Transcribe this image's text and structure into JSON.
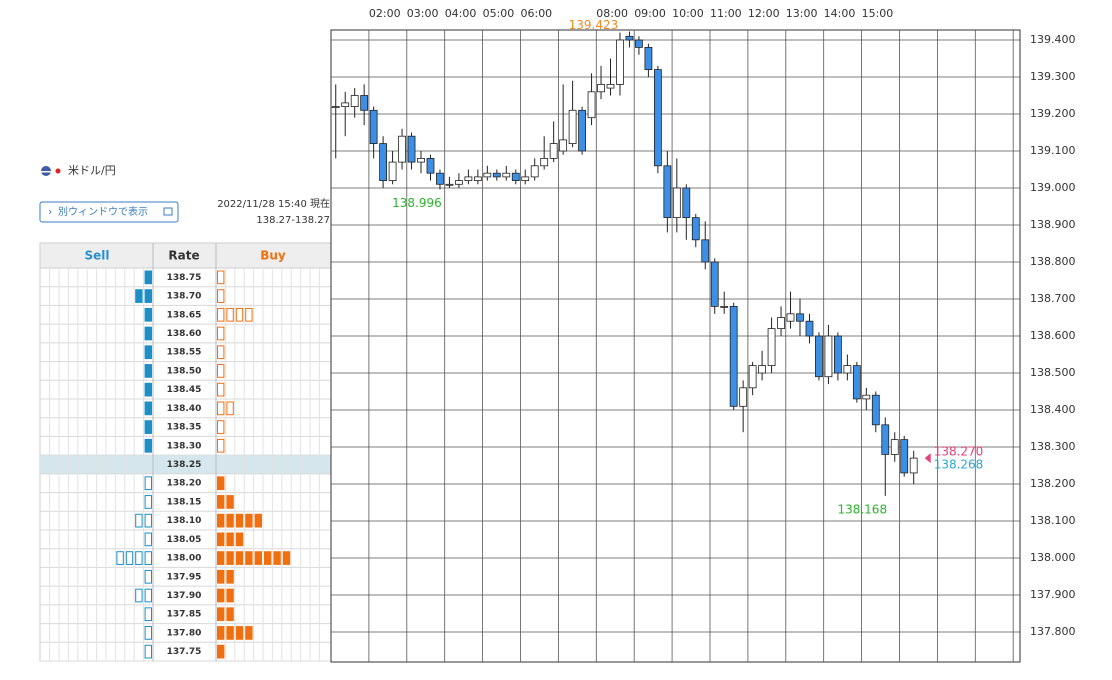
{
  "panel": {
    "pair": "米ドル/円",
    "button": "別ウィンドウで表示",
    "timestamp": "2022/11/28 15:40 現在",
    "range": "138.27-138.27"
  },
  "order_book": {
    "headers": [
      "Sell",
      "Rate",
      "Buy"
    ],
    "sell_color": "#1a8fc8",
    "buy_color": "#f07010",
    "rows": [
      {
        "rate": "138.75",
        "sell": 1,
        "buy": 1
      },
      {
        "rate": "138.70",
        "sell": 2,
        "buy": 1
      },
      {
        "rate": "138.65",
        "sell": 1,
        "buy": 4
      },
      {
        "rate": "138.60",
        "sell": 1,
        "buy": 1
      },
      {
        "rate": "138.55",
        "sell": 1,
        "buy": 1
      },
      {
        "rate": "138.50",
        "sell": 1,
        "buy": 1
      },
      {
        "rate": "138.45",
        "sell": 1,
        "buy": 1
      },
      {
        "rate": "138.40",
        "sell": 1,
        "buy": 2
      },
      {
        "rate": "138.35",
        "sell": 1,
        "buy": 1
      },
      {
        "rate": "138.30",
        "sell": 1,
        "buy": 1
      },
      {
        "rate": "138.25",
        "sell": 0,
        "buy": 0,
        "current": true
      },
      {
        "rate": "138.20",
        "sell": 1,
        "buy": 1
      },
      {
        "rate": "138.15",
        "sell": 1,
        "buy": 2
      },
      {
        "rate": "138.10",
        "sell": 2,
        "buy": 5
      },
      {
        "rate": "138.05",
        "sell": 1,
        "buy": 3
      },
      {
        "rate": "138.00",
        "sell": 4,
        "buy": 8
      },
      {
        "rate": "137.95",
        "sell": 1,
        "buy": 2
      },
      {
        "rate": "137.90",
        "sell": 2,
        "buy": 2
      },
      {
        "rate": "137.85",
        "sell": 1,
        "buy": 2
      },
      {
        "rate": "137.80",
        "sell": 1,
        "buy": 4
      },
      {
        "rate": "137.75",
        "sell": 1,
        "buy": 1
      }
    ]
  },
  "chart_data": {
    "type": "candlestick",
    "up_color": "#ffffff",
    "down_color": "#3d8fe6",
    "grid": true,
    "xlim": [
      1,
      19.18
    ],
    "ylim": [
      137.719,
      139.427
    ],
    "xticks": [
      {
        "value": 2,
        "label": "02:00"
      },
      {
        "value": 3,
        "label": "03:00"
      },
      {
        "value": 4,
        "label": "04:00"
      },
      {
        "value": 5,
        "label": "05:00"
      },
      {
        "value": 6,
        "label": "06:00"
      },
      {
        "value": 7,
        "label": null
      },
      {
        "value": 8,
        "label": "08:00"
      },
      {
        "value": 9,
        "label": "09:00"
      },
      {
        "value": 10,
        "label": "10:00"
      },
      {
        "value": 11,
        "label": "11:00"
      },
      {
        "value": 12,
        "label": "12:00"
      },
      {
        "value": 13,
        "label": "13:00"
      },
      {
        "value": 14,
        "label": "14:00"
      },
      {
        "value": 15,
        "label": "15:00"
      },
      {
        "value": 16,
        "label": null
      },
      {
        "value": 17,
        "label": null
      },
      {
        "value": 18,
        "label": null
      },
      {
        "value": 19,
        "label": null
      }
    ],
    "yticks": [
      {
        "value": 139.4,
        "label": "139.400"
      },
      {
        "value": 139.3,
        "label": "139.300"
      },
      {
        "value": 139.2,
        "label": "139.200"
      },
      {
        "value": 139.1,
        "label": "139.100"
      },
      {
        "value": 139.0,
        "label": "139.000"
      },
      {
        "value": 138.9,
        "label": "138.900"
      },
      {
        "value": 138.8,
        "label": "138.800"
      },
      {
        "value": 138.7,
        "label": "138.700"
      },
      {
        "value": 138.6,
        "label": "138.600"
      },
      {
        "value": 138.5,
        "label": "138.500"
      },
      {
        "value": 138.4,
        "label": "138.400"
      },
      {
        "value": 138.3,
        "label": "138.300"
      },
      {
        "value": 138.2,
        "label": "138.200"
      },
      {
        "value": 138.1,
        "label": "138.100"
      },
      {
        "value": 138.0,
        "label": "138.000"
      },
      {
        "value": 137.9,
        "label": "137.900"
      },
      {
        "value": 137.8,
        "label": "137.800"
      }
    ],
    "x": [
      1.125,
      1.375,
      1.625,
      1.875,
      2.125,
      2.375,
      2.625,
      2.875,
      3.125,
      3.375,
      3.625,
      3.875,
      4.125,
      4.375,
      4.625,
      4.875,
      5.125,
      5.375,
      5.625,
      5.875,
      6.125,
      6.375,
      6.625,
      6.875,
      7.125,
      7.375,
      7.625,
      7.875,
      8.125,
      8.375,
      8.625,
      8.875,
      9.125,
      9.375,
      9.625,
      9.875,
      10.125,
      10.375,
      10.625,
      10.875,
      11.125,
      11.375,
      11.625,
      11.875,
      12.125,
      12.375,
      12.625,
      12.875,
      13.125,
      13.375,
      13.625,
      13.875,
      14.125,
      14.375,
      14.625,
      14.875,
      15.125,
      15.375,
      15.625,
      15.875,
      16.125,
      16.375
    ],
    "open": [
      139.22,
      139.22,
      139.22,
      139.25,
      139.21,
      139.12,
      139.02,
      139.07,
      139.14,
      139.07,
      139.08,
      139.04,
      139.01,
      139.01,
      139.02,
      139.02,
      139.03,
      139.04,
      139.03,
      139.04,
      139.02,
      139.03,
      139.06,
      139.08,
      139.1,
      139.12,
      139.21,
      139.19,
      139.26,
      139.27,
      139.28,
      139.41,
      139.4,
      139.38,
      139.32,
      139.06,
      138.92,
      139.0,
      138.92,
      138.86,
      138.8,
      138.68,
      138.68,
      138.41,
      138.46,
      138.5,
      138.52,
      138.62,
      138.64,
      138.66,
      138.64,
      138.6,
      138.49,
      138.6,
      138.5,
      138.52,
      138.43,
      138.44,
      138.36,
      138.28,
      138.32,
      138.23
    ],
    "high": [
      139.28,
      139.26,
      139.27,
      139.28,
      139.22,
      139.14,
      139.1,
      139.16,
      139.15,
      139.1,
      139.09,
      139.05,
      139.03,
      139.04,
      139.05,
      139.05,
      139.06,
      139.05,
      139.06,
      139.05,
      139.05,
      139.08,
      139.14,
      139.18,
      139.28,
      139.29,
      139.22,
      139.31,
      139.33,
      139.35,
      139.42,
      139.423,
      139.41,
      139.39,
      139.33,
      139.1,
      139.08,
      139.01,
      138.93,
      138.91,
      138.81,
      138.72,
      138.69,
      138.48,
      138.53,
      138.56,
      138.65,
      138.68,
      138.72,
      138.7,
      138.66,
      138.61,
      138.63,
      138.61,
      138.55,
      138.53,
      138.46,
      138.45,
      138.38,
      138.34,
      138.33,
      138.29
    ],
    "low": [
      139.08,
      139.14,
      139.19,
      139.17,
      139.08,
      139.0,
      139.01,
      139.05,
      139.05,
      139.04,
      139.02,
      138.996,
      139.0,
      139.0,
      139.01,
      139.01,
      139.02,
      139.02,
      139.02,
      139.01,
      139.01,
      139.02,
      139.05,
      139.07,
      139.09,
      139.11,
      139.09,
      139.17,
      139.24,
      139.25,
      139.25,
      139.38,
      139.36,
      139.3,
      139.04,
      138.88,
      138.88,
      138.86,
      138.84,
      138.78,
      138.66,
      138.66,
      138.4,
      138.34,
      138.44,
      138.48,
      138.5,
      138.6,
      138.62,
      138.6,
      138.58,
      138.48,
      138.47,
      138.48,
      138.48,
      138.42,
      138.4,
      138.34,
      138.168,
      138.26,
      138.22,
      138.2
    ],
    "close": [
      139.22,
      139.23,
      139.25,
      139.21,
      139.12,
      139.02,
      139.07,
      139.14,
      139.07,
      139.08,
      139.04,
      139.01,
      139.01,
      139.02,
      139.03,
      139.03,
      139.04,
      139.03,
      139.04,
      139.02,
      139.03,
      139.06,
      139.08,
      139.12,
      139.13,
      139.21,
      139.1,
      139.26,
      139.28,
      139.28,
      139.4,
      139.4,
      139.38,
      139.32,
      139.06,
      138.92,
      139.0,
      138.92,
      138.86,
      138.8,
      138.68,
      138.68,
      138.41,
      138.46,
      138.52,
      138.52,
      138.62,
      138.65,
      138.66,
      138.64,
      138.6,
      138.49,
      138.6,
      138.5,
      138.52,
      138.43,
      138.44,
      138.36,
      138.28,
      138.32,
      138.23,
      138.27
    ],
    "high_labels": [
      {
        "value": 139.423,
        "label": "139.423",
        "color": "#f08a24"
      }
    ],
    "low_labels": [
      {
        "value": 138.996,
        "label": "138.996",
        "color": "#2bb52b"
      },
      {
        "value": 138.168,
        "label": "138.168",
        "color": "#2bb52b"
      }
    ],
    "price_labels": [
      {
        "value": 138.27,
        "label": "138.270",
        "color": "#e8407a"
      },
      {
        "value": 138.268,
        "label": "138.268",
        "color": "#2aa8d0"
      }
    ]
  }
}
